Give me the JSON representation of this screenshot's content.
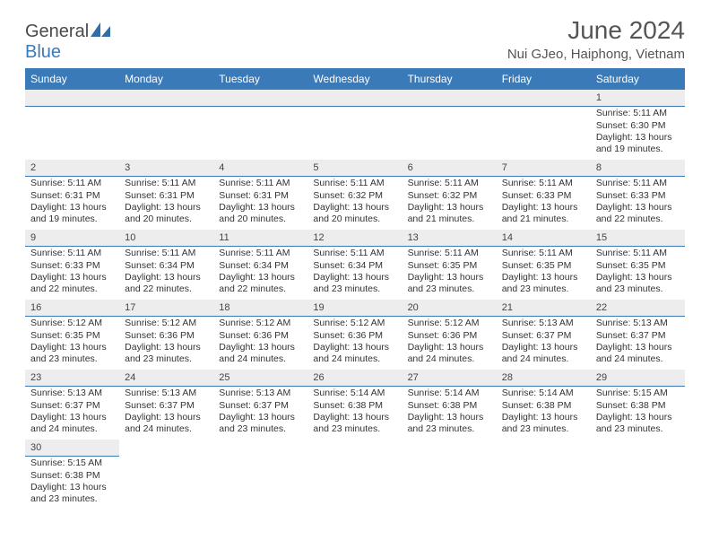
{
  "logo": {
    "text1": "General",
    "text2": "Blue"
  },
  "title": "June 2024",
  "location": "Nui GJeo, Haiphong, Vietnam",
  "colors": {
    "header_bg": "#3a7ab8",
    "header_text": "#ffffff",
    "daynum_bg": "#ededed",
    "daynum_border": "#3a7ab8",
    "body_text": "#333333",
    "title_text": "#555555"
  },
  "day_headers": [
    "Sunday",
    "Monday",
    "Tuesday",
    "Wednesday",
    "Thursday",
    "Friday",
    "Saturday"
  ],
  "grid": [
    [
      {
        "n": "",
        "lines": []
      },
      {
        "n": "",
        "lines": []
      },
      {
        "n": "",
        "lines": []
      },
      {
        "n": "",
        "lines": []
      },
      {
        "n": "",
        "lines": []
      },
      {
        "n": "",
        "lines": []
      },
      {
        "n": "1",
        "lines": [
          "Sunrise: 5:11 AM",
          "Sunset: 6:30 PM",
          "Daylight: 13 hours",
          "and 19 minutes."
        ]
      }
    ],
    [
      {
        "n": "2",
        "lines": [
          "Sunrise: 5:11 AM",
          "Sunset: 6:31 PM",
          "Daylight: 13 hours",
          "and 19 minutes."
        ]
      },
      {
        "n": "3",
        "lines": [
          "Sunrise: 5:11 AM",
          "Sunset: 6:31 PM",
          "Daylight: 13 hours",
          "and 20 minutes."
        ]
      },
      {
        "n": "4",
        "lines": [
          "Sunrise: 5:11 AM",
          "Sunset: 6:31 PM",
          "Daylight: 13 hours",
          "and 20 minutes."
        ]
      },
      {
        "n": "5",
        "lines": [
          "Sunrise: 5:11 AM",
          "Sunset: 6:32 PM",
          "Daylight: 13 hours",
          "and 20 minutes."
        ]
      },
      {
        "n": "6",
        "lines": [
          "Sunrise: 5:11 AM",
          "Sunset: 6:32 PM",
          "Daylight: 13 hours",
          "and 21 minutes."
        ]
      },
      {
        "n": "7",
        "lines": [
          "Sunrise: 5:11 AM",
          "Sunset: 6:33 PM",
          "Daylight: 13 hours",
          "and 21 minutes."
        ]
      },
      {
        "n": "8",
        "lines": [
          "Sunrise: 5:11 AM",
          "Sunset: 6:33 PM",
          "Daylight: 13 hours",
          "and 22 minutes."
        ]
      }
    ],
    [
      {
        "n": "9",
        "lines": [
          "Sunrise: 5:11 AM",
          "Sunset: 6:33 PM",
          "Daylight: 13 hours",
          "and 22 minutes."
        ]
      },
      {
        "n": "10",
        "lines": [
          "Sunrise: 5:11 AM",
          "Sunset: 6:34 PM",
          "Daylight: 13 hours",
          "and 22 minutes."
        ]
      },
      {
        "n": "11",
        "lines": [
          "Sunrise: 5:11 AM",
          "Sunset: 6:34 PM",
          "Daylight: 13 hours",
          "and 22 minutes."
        ]
      },
      {
        "n": "12",
        "lines": [
          "Sunrise: 5:11 AM",
          "Sunset: 6:34 PM",
          "Daylight: 13 hours",
          "and 23 minutes."
        ]
      },
      {
        "n": "13",
        "lines": [
          "Sunrise: 5:11 AM",
          "Sunset: 6:35 PM",
          "Daylight: 13 hours",
          "and 23 minutes."
        ]
      },
      {
        "n": "14",
        "lines": [
          "Sunrise: 5:11 AM",
          "Sunset: 6:35 PM",
          "Daylight: 13 hours",
          "and 23 minutes."
        ]
      },
      {
        "n": "15",
        "lines": [
          "Sunrise: 5:11 AM",
          "Sunset: 6:35 PM",
          "Daylight: 13 hours",
          "and 23 minutes."
        ]
      }
    ],
    [
      {
        "n": "16",
        "lines": [
          "Sunrise: 5:12 AM",
          "Sunset: 6:35 PM",
          "Daylight: 13 hours",
          "and 23 minutes."
        ]
      },
      {
        "n": "17",
        "lines": [
          "Sunrise: 5:12 AM",
          "Sunset: 6:36 PM",
          "Daylight: 13 hours",
          "and 23 minutes."
        ]
      },
      {
        "n": "18",
        "lines": [
          "Sunrise: 5:12 AM",
          "Sunset: 6:36 PM",
          "Daylight: 13 hours",
          "and 24 minutes."
        ]
      },
      {
        "n": "19",
        "lines": [
          "Sunrise: 5:12 AM",
          "Sunset: 6:36 PM",
          "Daylight: 13 hours",
          "and 24 minutes."
        ]
      },
      {
        "n": "20",
        "lines": [
          "Sunrise: 5:12 AM",
          "Sunset: 6:36 PM",
          "Daylight: 13 hours",
          "and 24 minutes."
        ]
      },
      {
        "n": "21",
        "lines": [
          "Sunrise: 5:13 AM",
          "Sunset: 6:37 PM",
          "Daylight: 13 hours",
          "and 24 minutes."
        ]
      },
      {
        "n": "22",
        "lines": [
          "Sunrise: 5:13 AM",
          "Sunset: 6:37 PM",
          "Daylight: 13 hours",
          "and 24 minutes."
        ]
      }
    ],
    [
      {
        "n": "23",
        "lines": [
          "Sunrise: 5:13 AM",
          "Sunset: 6:37 PM",
          "Daylight: 13 hours",
          "and 24 minutes."
        ]
      },
      {
        "n": "24",
        "lines": [
          "Sunrise: 5:13 AM",
          "Sunset: 6:37 PM",
          "Daylight: 13 hours",
          "and 24 minutes."
        ]
      },
      {
        "n": "25",
        "lines": [
          "Sunrise: 5:13 AM",
          "Sunset: 6:37 PM",
          "Daylight: 13 hours",
          "and 23 minutes."
        ]
      },
      {
        "n": "26",
        "lines": [
          "Sunrise: 5:14 AM",
          "Sunset: 6:38 PM",
          "Daylight: 13 hours",
          "and 23 minutes."
        ]
      },
      {
        "n": "27",
        "lines": [
          "Sunrise: 5:14 AM",
          "Sunset: 6:38 PM",
          "Daylight: 13 hours",
          "and 23 minutes."
        ]
      },
      {
        "n": "28",
        "lines": [
          "Sunrise: 5:14 AM",
          "Sunset: 6:38 PM",
          "Daylight: 13 hours",
          "and 23 minutes."
        ]
      },
      {
        "n": "29",
        "lines": [
          "Sunrise: 5:15 AM",
          "Sunset: 6:38 PM",
          "Daylight: 13 hours",
          "and 23 minutes."
        ]
      }
    ],
    [
      {
        "n": "30",
        "lines": [
          "Sunrise: 5:15 AM",
          "Sunset: 6:38 PM",
          "Daylight: 13 hours",
          "and 23 minutes."
        ]
      },
      {
        "n": "",
        "lines": []
      },
      {
        "n": "",
        "lines": []
      },
      {
        "n": "",
        "lines": []
      },
      {
        "n": "",
        "lines": []
      },
      {
        "n": "",
        "lines": []
      },
      {
        "n": "",
        "lines": []
      }
    ]
  ]
}
